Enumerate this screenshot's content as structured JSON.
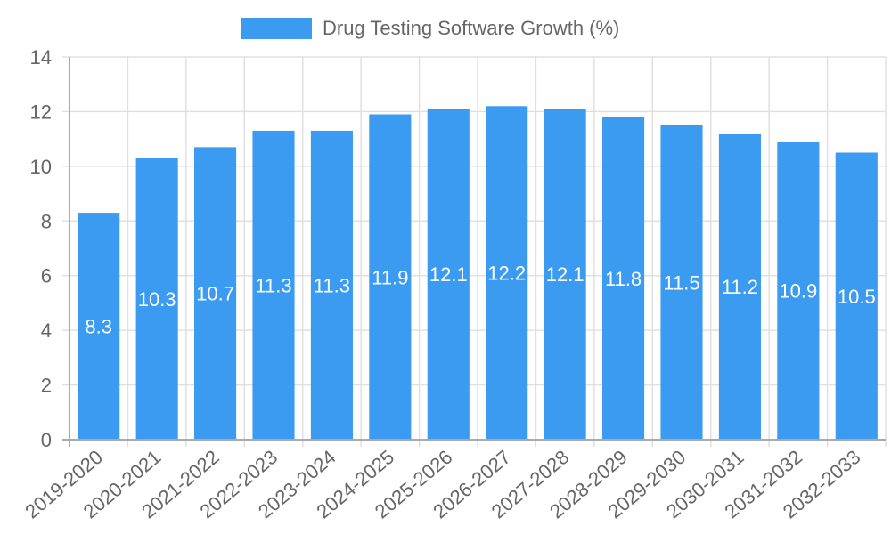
{
  "chart_data": {
    "type": "bar",
    "title": "",
    "legend": [
      {
        "label": "Drug Testing Software Growth (%)",
        "color": "#3a9bf0"
      }
    ],
    "legend_position": "top",
    "xlabel": "",
    "ylabel": "",
    "ylim": [
      0,
      14
    ],
    "yticks": [
      0,
      2,
      4,
      6,
      8,
      10,
      12,
      14
    ],
    "grid": true,
    "categories": [
      "2019-2020",
      "2020-2021",
      "2021-2022",
      "2022-2023",
      "2023-2024",
      "2024-2025",
      "2025-2026",
      "2026-2027",
      "2027-2028",
      "2028-2029",
      "2029-2030",
      "2030-2031",
      "2031-2032",
      "2032-2033"
    ],
    "series": [
      {
        "name": "Drug Testing Software Growth (%)",
        "color": "#3a9bf0",
        "values": [
          8.3,
          10.3,
          10.7,
          11.3,
          11.3,
          11.9,
          12.1,
          12.2,
          12.1,
          11.8,
          11.5,
          11.2,
          10.9,
          10.5
        ]
      }
    ],
    "data_labels": [
      "8.3",
      "10.3",
      "10.7",
      "11.3",
      "11.3",
      "11.9",
      "12.1",
      "12.2",
      "12.1",
      "11.8",
      "11.5",
      "11.2",
      "10.9",
      "10.5"
    ]
  },
  "legend": {
    "label": "Drug Testing Software Growth (%)"
  },
  "colors": {
    "bar": "#3a9bf0",
    "grid": "#e0e0e0",
    "axis": "#aaaaaa",
    "text": "#666666"
  }
}
